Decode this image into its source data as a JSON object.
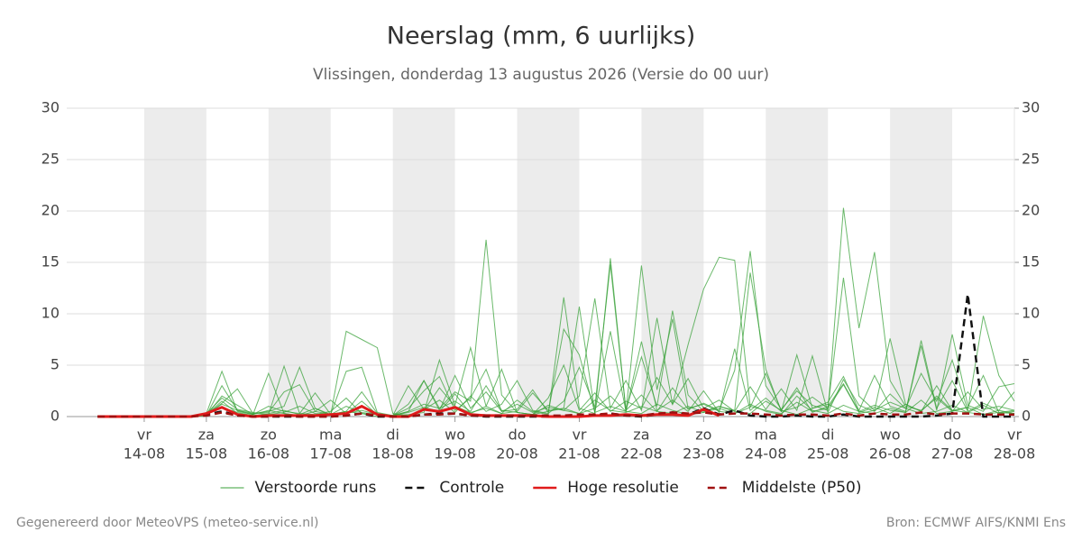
{
  "chart_data": {
    "type": "line",
    "title": "Neerslag (mm, 6 uurlijks)",
    "subtitle": "Vlissingen, donderdag 13 augustus 2026 (Versie do 00 uur)",
    "categories": [
      null,
      null,
      null,
      "14-08",
      null,
      null,
      null,
      "15-08",
      null,
      null,
      null,
      "16-08",
      null,
      null,
      null,
      "17-08",
      null,
      null,
      null,
      "18-08",
      null,
      null,
      null,
      "19-08",
      null,
      null,
      null,
      "20-08",
      null,
      null,
      null,
      "21-08",
      null,
      null,
      null,
      "22-08",
      null,
      null,
      null,
      "23-08",
      null,
      null,
      null,
      "24-08",
      null,
      null,
      null,
      "25-08",
      null,
      null,
      null,
      "26-08",
      null,
      null,
      null,
      "27-08",
      null,
      null,
      null,
      "28-08"
    ],
    "weekdays": [
      null,
      null,
      null,
      "vr",
      null,
      null,
      null,
      "za",
      null,
      null,
      null,
      "zo",
      null,
      null,
      null,
      "ma",
      null,
      null,
      null,
      "di",
      null,
      null,
      null,
      "wo",
      null,
      null,
      null,
      "do",
      null,
      null,
      null,
      "vr",
      null,
      null,
      null,
      "za",
      null,
      null,
      null,
      "zo",
      null,
      null,
      null,
      "ma",
      null,
      null,
      null,
      "di",
      null,
      null,
      null,
      "wo",
      null,
      null,
      null,
      "do",
      null,
      null,
      null,
      "vr"
    ],
    "ylim": [
      0,
      30
    ],
    "yticks": [
      0,
      5,
      10,
      15,
      20,
      25,
      30
    ],
    "y2lim": [
      0,
      30
    ],
    "y2ticks": [
      0,
      5,
      10,
      15,
      20,
      25,
      30
    ],
    "grid": true,
    "ensemble": {
      "name": "Verstoorde runs",
      "color": "#3aa23a",
      "runs": [
        [
          0,
          0,
          0,
          0,
          0,
          0,
          0,
          0.3,
          4.4,
          0.5,
          0.2,
          4.2,
          0.3,
          0.1,
          0,
          0.2,
          0.5,
          0.3,
          0,
          0.1,
          0.5,
          1.2,
          0.8,
          2.4,
          1.5,
          17.2,
          2.1,
          0.4,
          0.2,
          1.1,
          0.6,
          0.3,
          0.8,
          2.0,
          0.5,
          0.3,
          1.2,
          0.6,
          0.2,
          0.4,
          1.0,
          0.5,
          0.3,
          1.5,
          0.6,
          0.2,
          0.8,
          1.2,
          0.5,
          0.3,
          0.6,
          1.4,
          0.8,
          0.3,
          0.5,
          1.1,
          0.4,
          0.2,
          0.6,
          0.3
        ],
        [
          0,
          0,
          0,
          0,
          0,
          0,
          0,
          0.2,
          1.2,
          0.6,
          0.3,
          0.5,
          1.0,
          4.8,
          0.8,
          0.2,
          8.3,
          7.5,
          6.7,
          0.3,
          0.1,
          0.6,
          2.8,
          1.0,
          0.4,
          0.8,
          0.3,
          1.6,
          0.5,
          0.2,
          11.6,
          0.8,
          0.3,
          15.4,
          0.6,
          2.1,
          0.5,
          0.3,
          1.0,
          0.4,
          0.8,
          0.3,
          1.2,
          0.5,
          0.2,
          2.0,
          0.6,
          0.3,
          1.1,
          0.5,
          0.3,
          0.8,
          0.4,
          1.6,
          0.3,
          0.5,
          0.9,
          0.2,
          0.4,
          0.3
        ],
        [
          0,
          0,
          0,
          0,
          0,
          0,
          0,
          0.1,
          2.0,
          1.1,
          0.2,
          0.6,
          0.3,
          0.1,
          0.5,
          0.2,
          4.4,
          4.8,
          0.4,
          0.1,
          0.2,
          0.4,
          5.5,
          1.1,
          6.7,
          1.0,
          0.3,
          0.5,
          2.3,
          0.6,
          0.8,
          10.7,
          0.4,
          1.0,
          0.5,
          14.7,
          2.6,
          9.5,
          0.8,
          1.2,
          0.5,
          0.3,
          0.9,
          4.2,
          0.6,
          2.8,
          0.4,
          1.0,
          3.2,
          0.5,
          1.1,
          0.6,
          0.4,
          7.4,
          0.8,
          3.5,
          0.5,
          1.3,
          0.6,
          2.4
        ],
        [
          0,
          0,
          0,
          0,
          0,
          0,
          0,
          0.2,
          1.5,
          0.3,
          0.1,
          0.2,
          0.4,
          1.0,
          0.3,
          0.2,
          0.5,
          2.4,
          0.3,
          0.1,
          1.2,
          3.5,
          0.8,
          1.5,
          0.5,
          3.0,
          0.6,
          0.4,
          0.2,
          1.8,
          5.0,
          0.6,
          2.3,
          0.5,
          1.5,
          0.8,
          3.8,
          1.2,
          7.0,
          12.4,
          15.5,
          15.2,
          1.0,
          0.6,
          0.3,
          1.4,
          0.5,
          0.8,
          3.1,
          0.4,
          0.9,
          0.3,
          1.2,
          0.5,
          2.0,
          0.6,
          0.4,
          1.1,
          0.3,
          0.5
        ],
        [
          0,
          0,
          0,
          0,
          0,
          0,
          0,
          0.2,
          0.9,
          0.4,
          0.1,
          0.3,
          0.6,
          0.2,
          0.8,
          0.1,
          0.3,
          1.5,
          0.2,
          0.1,
          0.4,
          0.9,
          0.5,
          2.2,
          0.3,
          1.0,
          4.6,
          0.4,
          0.2,
          0.5,
          0.8,
          0.3,
          1.6,
          0.6,
          0.4,
          1.0,
          0.5,
          2.8,
          0.7,
          1.3,
          0.6,
          4.5,
          16.1,
          3.0,
          0.7,
          2.5,
          1.1,
          0.6,
          20.3,
          8.6,
          16.0,
          3.5,
          1.0,
          0.6,
          1.8,
          0.5,
          2.4,
          0.7,
          1.0,
          0.6
        ],
        [
          0,
          0,
          0,
          0,
          0,
          0,
          0,
          0.1,
          3.0,
          0.6,
          0.2,
          1.0,
          0.5,
          0.3,
          2.3,
          0.2,
          1.0,
          0.4,
          0.2,
          0.1,
          3.0,
          0.7,
          1.6,
          0.4,
          2.0,
          0.5,
          1.2,
          3.5,
          0.6,
          0.3,
          1.5,
          4.8,
          0.9,
          14.8,
          0.6,
          5.8,
          1.0,
          10.3,
          2.1,
          0.5,
          1.0,
          0.6,
          14.0,
          4.6,
          0.5,
          0.9,
          1.9,
          0.8,
          13.5,
          2.0,
          0.6,
          7.6,
          1.2,
          0.5,
          3.0,
          0.6,
          0.9,
          4.0,
          0.4,
          0.6
        ],
        [
          0,
          0,
          0,
          0,
          0,
          0,
          0,
          0.3,
          1.8,
          0.7,
          0.4,
          0.2,
          4.9,
          0.3,
          0.2,
          0.5,
          1.8,
          0.3,
          0.2,
          0.1,
          0.5,
          3.5,
          0.6,
          4.0,
          0.8,
          2.4,
          0.5,
          1.2,
          0.4,
          0.9,
          0.6,
          2.0,
          11.5,
          0.8,
          3.5,
          0.6,
          9.6,
          1.2,
          3.7,
          0.8,
          1.6,
          0.5,
          2.9,
          0.7,
          2.7,
          0.6,
          5.9,
          0.4,
          3.6,
          1.1,
          0.5,
          2.2,
          0.8,
          4.2,
          1.5,
          5.5,
          0.6,
          9.8,
          4.0,
          1.5
        ],
        [
          0,
          0,
          0,
          0,
          0,
          0,
          0,
          0.2,
          1.3,
          2.7,
          0.3,
          0.4,
          2.4,
          3.1,
          0.5,
          1.6,
          0.3,
          0.6,
          0.2,
          0.1,
          0.8,
          2.5,
          3.9,
          0.6,
          1.8,
          4.6,
          0.5,
          0.7,
          2.6,
          0.4,
          8.5,
          6.0,
          0.4,
          8.3,
          0.5,
          7.3,
          0.6,
          1.6,
          0.5,
          2.5,
          0.4,
          6.6,
          0.6,
          1.8,
          0.5,
          6.0,
          0.8,
          1.4,
          3.9,
          0.6,
          4.0,
          1.0,
          0.5,
          6.9,
          0.6,
          8.0,
          1.1,
          0.5,
          2.9,
          3.2
        ]
      ]
    },
    "series": [
      {
        "name": "Controle",
        "color": "#111111",
        "dash": true,
        "values": [
          0,
          0,
          0,
          0,
          0,
          0,
          0,
          0.2,
          0.5,
          0.1,
          0,
          0,
          0,
          0,
          0,
          0,
          0.1,
          0.3,
          0,
          0,
          0,
          0.2,
          0.3,
          0.3,
          0.1,
          0,
          0,
          0,
          0,
          0,
          0,
          0,
          0.1,
          0.3,
          0.1,
          0,
          0.2,
          0.4,
          0.2,
          0.8,
          0.2,
          0.6,
          0.1,
          0,
          0,
          0.1,
          0,
          0,
          0.2,
          0,
          0,
          0,
          0,
          0,
          0.1,
          0.3,
          11.9,
          0,
          0,
          0
        ]
      },
      {
        "name": "Hoge resolutie",
        "color": "#e01b1b",
        "dash": false,
        "values": [
          0,
          0,
          0,
          0,
          0,
          0,
          0,
          0.3,
          0.9,
          0.2,
          0,
          0.1,
          0.1,
          0.1,
          0.1,
          0.2,
          0.3,
          1.0,
          0.2,
          0,
          0,
          0.7,
          0.5,
          0.9,
          0.2,
          0.1,
          0.1,
          0.1,
          0.1,
          0,
          0,
          0,
          0.1,
          0.1,
          0.2,
          0.1,
          0.2,
          0.2,
          0.1,
          0.7,
          0.1,
          null,
          null,
          null,
          null,
          null,
          null,
          null,
          null,
          null,
          null,
          null,
          null,
          null,
          null,
          null,
          null,
          null,
          null,
          null
        ]
      },
      {
        "name": "Middelste (P50)",
        "color": "#a01010",
        "dash": true,
        "values": [
          0,
          0,
          0,
          0,
          0,
          0,
          0,
          0.1,
          0.4,
          0.1,
          0,
          0,
          0.1,
          0,
          0,
          0,
          0.1,
          0.3,
          0.1,
          0,
          0,
          0.2,
          0.2,
          0.3,
          0.1,
          0.1,
          0.1,
          0.1,
          0.1,
          0.1,
          0.1,
          0.2,
          0.2,
          0.3,
          0.1,
          0.1,
          0.3,
          0.4,
          0.3,
          0.4,
          0.2,
          0.3,
          0.3,
          0.2,
          0.1,
          0.2,
          0.2,
          0.1,
          0.3,
          0.1,
          0.3,
          0.2,
          0.2,
          0.4,
          0.2,
          0.3,
          0.3,
          0.2,
          0.2,
          0.2
        ]
      }
    ],
    "footer_left": "Gegenereerd door MeteoVPS (meteo-service.nl)",
    "footer_right": "Bron: ECMWF AIFS/KNMI Ens"
  }
}
